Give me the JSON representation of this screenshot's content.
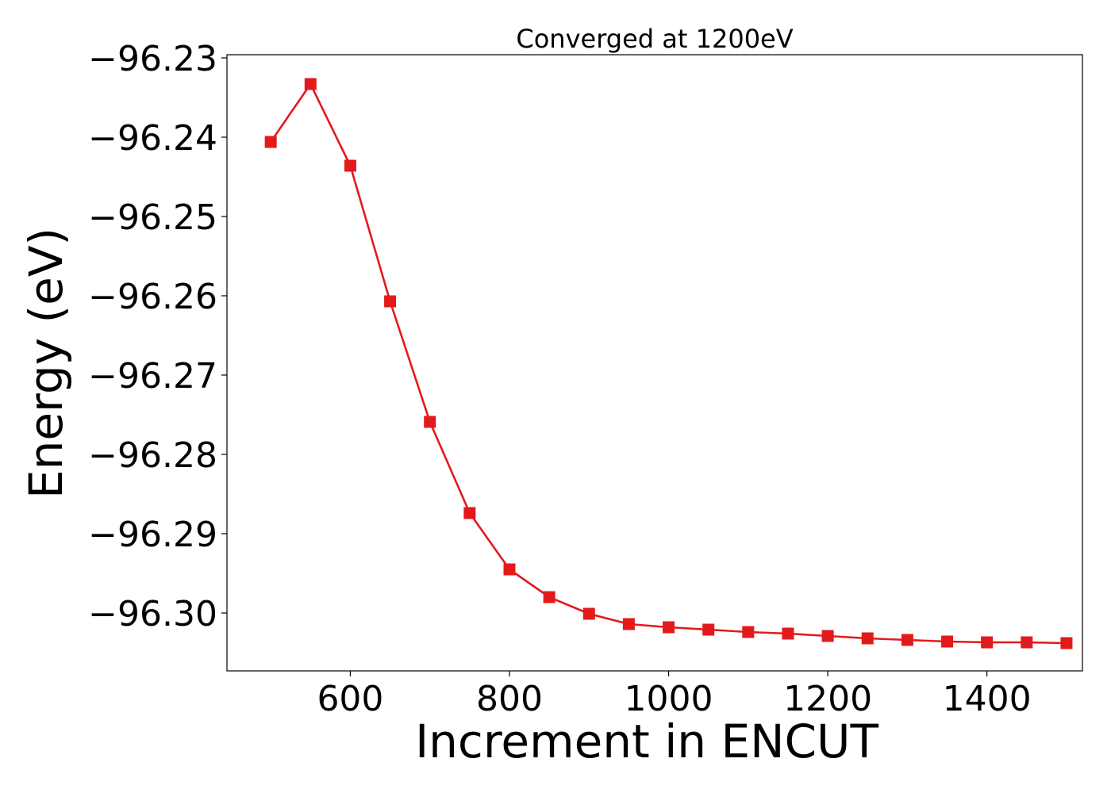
{
  "chart_data": {
    "type": "line",
    "title": "Converged at 1200eV",
    "xlabel": "Increment in ENCUT",
    "ylabel": "Energy (eV)",
    "xlim": [
      445,
      1520
    ],
    "ylim": [
      -96.3073,
      -96.2296
    ],
    "xticks": [
      600,
      800,
      1000,
      1200,
      1400
    ],
    "yticks": [
      -96.23,
      -96.24,
      -96.25,
      -96.26,
      -96.27,
      -96.28,
      -96.29,
      -96.3
    ],
    "ytick_labels": [
      "−96.23",
      "−96.24",
      "−96.25",
      "−96.26",
      "−96.27",
      "−96.28",
      "−96.29",
      "−96.30"
    ],
    "grid": false,
    "series": [
      {
        "color": "#e31a1c",
        "marker": "square",
        "x": [
          500,
          550,
          600,
          650,
          700,
          750,
          800,
          850,
          900,
          950,
          1000,
          1050,
          1100,
          1150,
          1200,
          1250,
          1300,
          1350,
          1400,
          1450,
          1500
        ],
        "y": [
          -96.2406,
          -96.2333,
          -96.2436,
          -96.2607,
          -96.2759,
          -96.2874,
          -96.2945,
          -96.298,
          -96.3001,
          -96.3014,
          -96.3018,
          -96.3021,
          -96.3024,
          -96.3026,
          -96.3029,
          -96.3032,
          -96.3034,
          -96.3036,
          -96.3037,
          -96.3037,
          -96.3038
        ]
      }
    ]
  }
}
